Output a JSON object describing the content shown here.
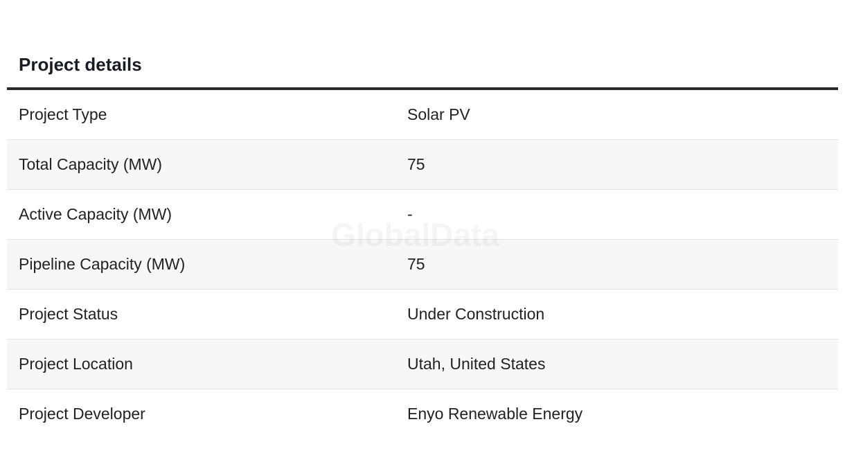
{
  "header": {
    "title": "Project details"
  },
  "watermark": "GlobalData",
  "table": {
    "rows": [
      [
        "Project Type",
        "Solar PV"
      ],
      [
        "Total Capacity (MW)",
        "75"
      ],
      [
        "Active Capacity (MW)",
        "-"
      ],
      [
        "Pipeline Capacity (MW)",
        "75"
      ],
      [
        "Project Status",
        "Under Construction"
      ],
      [
        "Project Location",
        "Utah, United States"
      ],
      [
        "Project Developer",
        "Enyo Renewable Energy"
      ]
    ]
  }
}
